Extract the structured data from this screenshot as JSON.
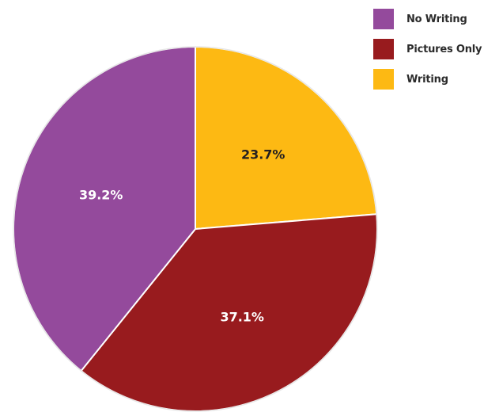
{
  "chart_data": {
    "type": "pie",
    "categories": [
      "No Writing",
      "Pictures Only",
      "Writing"
    ],
    "values": [
      39.2,
      37.1,
      23.7
    ],
    "labels": [
      "39.2%",
      "37.1%",
      "23.7%"
    ],
    "colors": [
      "#944a9c",
      "#981b1e",
      "#fdb913"
    ],
    "label_colors": [
      "#ffffff",
      "#ffffff",
      "#231f20"
    ],
    "legend": {
      "position": "top-right",
      "entries": [
        {
          "label": "No Writing",
          "color": "#944a9c"
        },
        {
          "label": "Pictures Only",
          "color": "#981b1e"
        },
        {
          "label": "Writing",
          "color": "#fdb913"
        }
      ]
    }
  }
}
